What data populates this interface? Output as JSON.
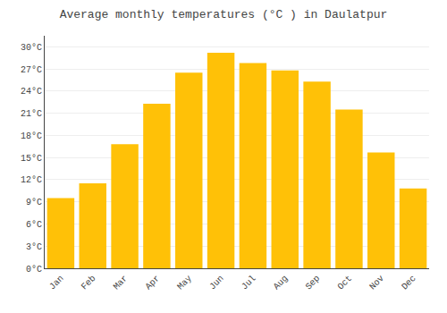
{
  "chart_data": {
    "type": "bar",
    "title": "Average monthly temperatures (°C ) in Daulatpur",
    "categories": [
      "Jan",
      "Feb",
      "Mar",
      "Apr",
      "May",
      "Jun",
      "Jul",
      "Aug",
      "Sep",
      "Oct",
      "Nov",
      "Dec"
    ],
    "values": [
      9.5,
      11.5,
      16.8,
      22.3,
      26.5,
      29.2,
      27.8,
      26.8,
      25.3,
      21.5,
      15.7,
      10.8
    ],
    "color": "#FFC107",
    "ylim": [
      0,
      31.5
    ],
    "yticks": [
      {
        "value": 0,
        "label": "0°C"
      },
      {
        "value": 3,
        "label": "3°C"
      },
      {
        "value": 6,
        "label": "6°C"
      },
      {
        "value": 9,
        "label": "9°C"
      },
      {
        "value": 12,
        "label": "12°C"
      },
      {
        "value": 15,
        "label": "15°C"
      },
      {
        "value": 18,
        "label": "18°C"
      },
      {
        "value": 21,
        "label": "21°C"
      },
      {
        "value": 24,
        "label": "24°C"
      },
      {
        "value": 27,
        "label": "27°C"
      },
      {
        "value": 30,
        "label": "30°C"
      }
    ],
    "grid": true
  }
}
